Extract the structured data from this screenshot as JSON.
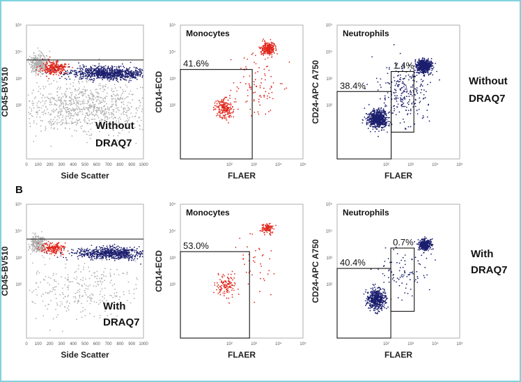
{
  "figure": {
    "section_label": "B",
    "colors": {
      "gray": "#b0b0b0",
      "red": "#e0261b",
      "navy": "#1c1f6e",
      "frame": "#7fd3df"
    }
  },
  "chart_data": [
    {
      "type": "scatter",
      "id": "p1",
      "row": "without",
      "xlabel": "Side Scatter",
      "ylabel": "CD45-BV510",
      "xlim": [
        0,
        1000
      ],
      "x_ticks": [
        "0",
        "100",
        "200",
        "300",
        "400",
        "500",
        "600",
        "700",
        "800",
        "900",
        "1000"
      ],
      "y_scale": "log",
      "ylim": [
        1,
        100000
      ],
      "y_ticks": [
        "10²",
        "10³",
        "10⁴",
        "10⁵"
      ],
      "annotation": [
        "Without",
        "DRAQ7"
      ],
      "gate": {
        "kind": "horizontal-line",
        "y": 5000
      },
      "populations": [
        {
          "name": "lymphocytes",
          "color": "gray",
          "x": 110,
          "y": 3500,
          "sx": 40,
          "sy": 0.18,
          "n": 320
        },
        {
          "name": "monocytes",
          "color": "red",
          "x": 240,
          "y": 2500,
          "sx": 60,
          "sy": 0.12,
          "n": 260
        },
        {
          "name": "granulocytes",
          "color": "navy",
          "x": 700,
          "y": 1600,
          "sx": 170,
          "sy": 0.12,
          "n": 900
        },
        {
          "name": "cd45-negative",
          "color": "gray",
          "x": 500,
          "y": 80,
          "sx": 280,
          "sy": 0.45,
          "n": 900
        }
      ]
    },
    {
      "type": "scatter",
      "id": "p2",
      "row": "without",
      "title": "Monocytes",
      "xlabel": "FLAER",
      "ylabel": "CD14-ECD",
      "x_scale": "log",
      "xlim": [
        1,
        100000
      ],
      "x_ticks": [
        "10²",
        "10³",
        "10⁴",
        "10⁵"
      ],
      "y_scale": "log",
      "ylim": [
        1,
        100000
      ],
      "y_ticks": [
        "10²",
        "10³",
        "10⁴",
        "10⁵"
      ],
      "gate": {
        "kind": "box",
        "label": "41.6%",
        "x": [
          1,
          850
        ],
        "y": [
          1,
          2200
        ]
      },
      "populations": [
        {
          "name": "cd14-neg",
          "color": "red",
          "x": 60,
          "y": 75,
          "sx": 0.2,
          "sy": 0.18,
          "n": 200
        },
        {
          "name": "cd14-pos",
          "color": "red",
          "x": 3800,
          "y": 13000,
          "sx": 0.15,
          "sy": 0.12,
          "n": 240
        },
        {
          "name": "scatter",
          "color": "red",
          "x": 1500,
          "y": 700,
          "sx": 0.5,
          "sy": 0.6,
          "n": 90
        }
      ]
    },
    {
      "type": "scatter",
      "id": "p3",
      "row": "without",
      "title": "Neutrophils",
      "xlabel": "FLAER",
      "ylabel": "CD24-APC A750",
      "x_scale": "log",
      "xlim": [
        1,
        100000
      ],
      "x_ticks": [
        "10²",
        "10³",
        "10⁴",
        "10⁵"
      ],
      "y_scale": "log",
      "ylim": [
        1,
        100000
      ],
      "y_ticks": [
        "10²",
        "10³",
        "10⁴",
        "10⁵"
      ],
      "gates": [
        {
          "kind": "box",
          "label": "38.4%",
          "x": [
            1,
            160
          ],
          "y": [
            1,
            330
          ]
        },
        {
          "kind": "box",
          "label": "1.4%",
          "x": [
            160,
            1350
          ],
          "y": [
            10,
            1850
          ]
        }
      ],
      "populations": [
        {
          "name": "flaer-neg",
          "color": "navy",
          "x": 45,
          "y": 30,
          "sx": 0.2,
          "sy": 0.18,
          "n": 700
        },
        {
          "name": "flaer-pos",
          "color": "navy",
          "x": 3500,
          "y": 2900,
          "sx": 0.15,
          "sy": 0.12,
          "n": 650
        },
        {
          "name": "intermediate",
          "color": "navy",
          "x": 500,
          "y": 300,
          "sx": 0.5,
          "sy": 0.55,
          "n": 260
        }
      ],
      "annotation": [
        "Without",
        "DRAQ7"
      ]
    },
    {
      "type": "scatter",
      "id": "p4",
      "row": "with",
      "xlabel": "Side Scatter",
      "ylabel": "CD45-BV510",
      "xlim": [
        0,
        1000
      ],
      "x_ticks": [
        "0",
        "100",
        "200",
        "300",
        "400",
        "500",
        "600",
        "700",
        "800",
        "900",
        "1000"
      ],
      "y_scale": "log",
      "ylim": [
        1,
        100000
      ],
      "y_ticks": [
        "10²",
        "10³",
        "10⁴",
        "10⁵"
      ],
      "annotation": [
        "With",
        "DRAQ7"
      ],
      "gate": {
        "kind": "horizontal-line",
        "y": 5000
      },
      "populations": [
        {
          "name": "lymphocytes",
          "color": "gray",
          "x": 100,
          "y": 3300,
          "sx": 35,
          "sy": 0.16,
          "n": 260
        },
        {
          "name": "monocytes",
          "color": "red",
          "x": 230,
          "y": 2300,
          "sx": 55,
          "sy": 0.11,
          "n": 170
        },
        {
          "name": "granulocytes",
          "color": "navy",
          "x": 730,
          "y": 1500,
          "sx": 160,
          "sy": 0.11,
          "n": 700
        },
        {
          "name": "cd45-negative",
          "color": "gray",
          "x": 450,
          "y": 60,
          "sx": 250,
          "sy": 0.5,
          "n": 300
        }
      ]
    },
    {
      "type": "scatter",
      "id": "p5",
      "row": "with",
      "title": "Monocytes",
      "xlabel": "FLAER",
      "ylabel": "CD14-ECD",
      "x_scale": "log",
      "xlim": [
        1,
        100000
      ],
      "x_ticks": [
        "10²",
        "10³",
        "10⁴",
        "10⁵"
      ],
      "y_scale": "log",
      "ylim": [
        1,
        100000
      ],
      "y_ticks": [
        "10²",
        "10³",
        "10⁴",
        "10⁵"
      ],
      "gate": {
        "kind": "box",
        "label": "53.0%",
        "x": [
          1,
          660
        ],
        "y": [
          1,
          1700
        ]
      },
      "populations": [
        {
          "name": "cd14-neg",
          "color": "red",
          "x": 70,
          "y": 90,
          "sx": 0.2,
          "sy": 0.2,
          "n": 120
        },
        {
          "name": "cd14-pos",
          "color": "red",
          "x": 3600,
          "y": 12000,
          "sx": 0.12,
          "sy": 0.1,
          "n": 110
        },
        {
          "name": "scatter",
          "color": "red",
          "x": 1200,
          "y": 600,
          "sx": 0.5,
          "sy": 0.6,
          "n": 40
        }
      ]
    },
    {
      "type": "scatter",
      "id": "p6",
      "row": "with",
      "title": "Neutrophils",
      "xlabel": "FLAER",
      "ylabel": "CD24-APC A750",
      "x_scale": "log",
      "xlim": [
        1,
        100000
      ],
      "x_ticks": [
        "10²",
        "10³",
        "10⁴",
        "10⁵"
      ],
      "y_scale": "log",
      "ylim": [
        1,
        100000
      ],
      "y_ticks": [
        "10²",
        "10³",
        "10⁴",
        "10⁵"
      ],
      "gates": [
        {
          "kind": "box",
          "label": "40.4%",
          "x": [
            1,
            155
          ],
          "y": [
            1,
            400
          ]
        },
        {
          "kind": "box",
          "label": "0.7%",
          "x": [
            155,
            1400
          ],
          "y": [
            10,
            2300
          ]
        }
      ],
      "populations": [
        {
          "name": "flaer-neg",
          "color": "navy",
          "x": 40,
          "y": 28,
          "sx": 0.18,
          "sy": 0.2,
          "n": 520
        },
        {
          "name": "flaer-pos",
          "color": "navy",
          "x": 3800,
          "y": 3000,
          "sx": 0.12,
          "sy": 0.1,
          "n": 420
        },
        {
          "name": "intermediate",
          "color": "navy",
          "x": 600,
          "y": 300,
          "sx": 0.5,
          "sy": 0.5,
          "n": 90
        }
      ],
      "annotation": [
        "With",
        "DRAQ7"
      ]
    }
  ]
}
